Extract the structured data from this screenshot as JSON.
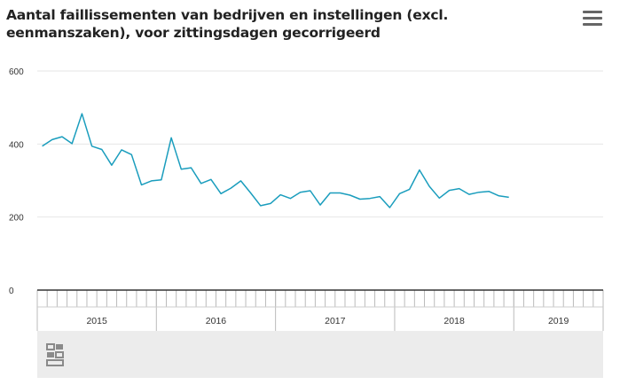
{
  "title": "Aantal faillissementen van bedrijven en instellingen (excl. eenmanszaken), voor zittingsdagen gecorrigeerd",
  "menu_icon": "hamburger-menu-icon",
  "logo_icon": "cbs-logo-icon",
  "colors": {
    "series": "#1a9dbd",
    "grid": "#e6e6e6",
    "axis": "#333333",
    "navigator_bg": "#ececec"
  },
  "chart_data": {
    "type": "line",
    "title": "Aantal faillissementen van bedrijven en instellingen (excl. eenmanszaken), voor zittingsdagen gecorrigeerd",
    "xlabel": "",
    "ylabel": "",
    "ylim": [
      0,
      600
    ],
    "yticks": [
      0,
      200,
      400,
      600
    ],
    "grid": true,
    "legend": "none",
    "x_start": "2015-01",
    "x_end": "2019-09",
    "years": [
      "2015",
      "2016",
      "2017",
      "2018",
      "2019"
    ],
    "series": [
      {
        "values": [
          394,
          412,
          420,
          401,
          483,
          394,
          385,
          342,
          384,
          371,
          288,
          299,
          302,
          417,
          331,
          335,
          292,
          303,
          264,
          279,
          299,
          266,
          231,
          237,
          261,
          251,
          268,
          272,
          233,
          266,
          266,
          260,
          249,
          251,
          256,
          226,
          264,
          276,
          329,
          284,
          252,
          273,
          278,
          262,
          268,
          270,
          258,
          254
        ]
      }
    ]
  }
}
